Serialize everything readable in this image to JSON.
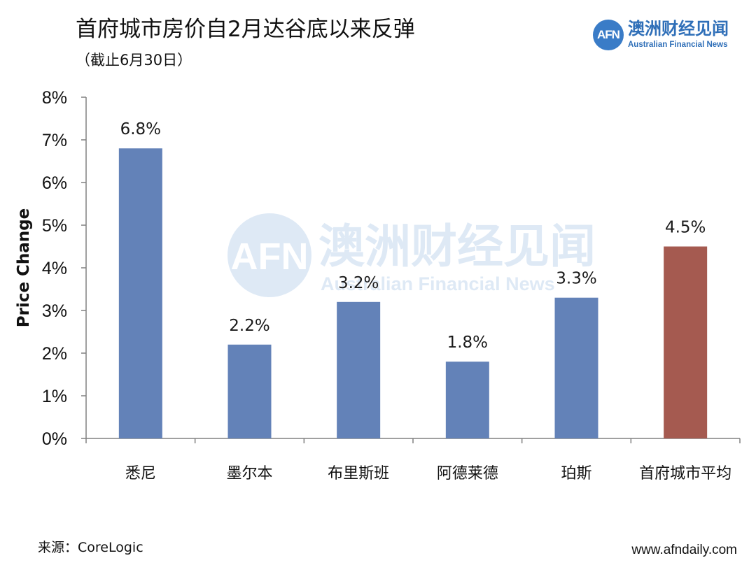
{
  "header": {
    "title": "首府城市房价自2月达谷底以来反弹",
    "subtitle": "（截止6月30日）"
  },
  "brand": {
    "logo_text": "AFN",
    "name_cn": "澳洲财经见闻",
    "name_en": "Australian Financial News",
    "color": "#2f6fb8"
  },
  "chart_data": {
    "type": "bar",
    "title": "首府城市房价自2月达谷底以来反弹",
    "subtitle": "（截止6月30日）",
    "ylabel": "Price Change",
    "xlabel": "",
    "ylim": [
      0,
      8
    ],
    "yticks": [
      "0%",
      "1%",
      "2%",
      "3%",
      "4%",
      "5%",
      "6%",
      "7%",
      "8%"
    ],
    "categories": [
      "悉尼",
      "墨尔本",
      "布里斯班",
      "阿德莱德",
      "珀斯",
      "首府城市平均"
    ],
    "values": [
      6.8,
      2.2,
      3.2,
      1.8,
      3.3,
      4.5
    ],
    "data_labels": [
      "6.8%",
      "2.2%",
      "3.2%",
      "1.8%",
      "3.3%",
      "4.5%"
    ],
    "colors": [
      "#6382b8",
      "#6382b8",
      "#6382b8",
      "#6382b8",
      "#6382b8",
      "#a55a50"
    ],
    "grid": false,
    "legend": "none"
  },
  "footer": {
    "source": "来源：CoreLogic",
    "url": "www.afndaily.com"
  }
}
